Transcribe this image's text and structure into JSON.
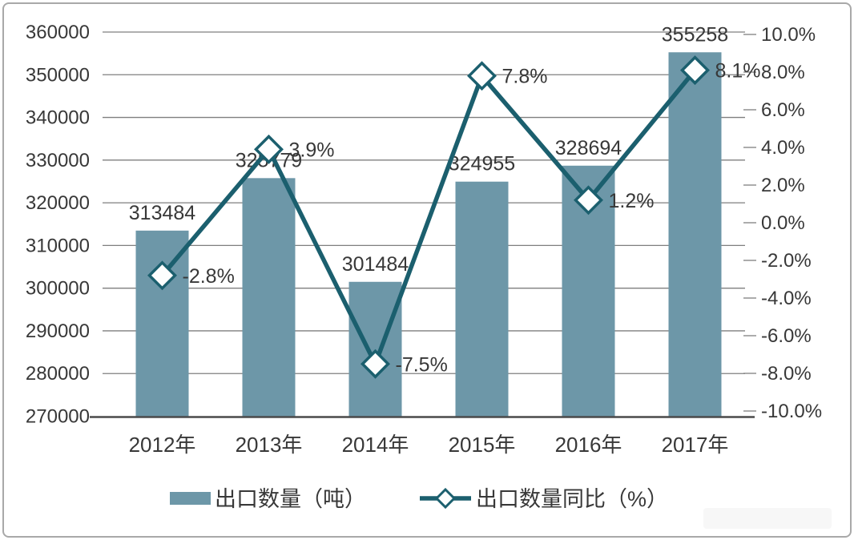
{
  "chart_data": {
    "type": "bar",
    "subtype": "combo-bar-line-dual-axis",
    "title": "",
    "categories": [
      "2012年",
      "2013年",
      "2014年",
      "2015年",
      "2016年",
      "2017年"
    ],
    "series": [
      {
        "name": "出口数量（吨）",
        "type": "bar",
        "axis": "left",
        "color": "#6d97a8",
        "values": [
          313484,
          325779,
          301484,
          324955,
          328694,
          355258
        ],
        "labels": [
          "313484",
          "325779",
          "301484",
          "324955",
          "328694",
          "355258"
        ]
      },
      {
        "name": "出口数量同比（%）",
        "type": "line",
        "axis": "right",
        "color": "#1b5f6e",
        "marker": "diamond",
        "marker_fill": "#fdfefe",
        "values": [
          -2.8,
          3.9,
          -7.5,
          7.8,
          1.2,
          8.1
        ],
        "labels": [
          "-2.8%",
          "3.9%",
          "-7.5%",
          "7.8%",
          "1.2%",
          "8.1%"
        ]
      }
    ],
    "left_axis": {
      "min": 270000,
      "max": 360000,
      "tick_labels": [
        "360000",
        "350000",
        "340000",
        "330000",
        "320000",
        "310000",
        "300000",
        "290000",
        "280000",
        "270000"
      ]
    },
    "right_axis": {
      "min": -10,
      "max": 10,
      "tick_labels": [
        "10.0%",
        "8.0%",
        "6.0%",
        "4.0%",
        "2.0%",
        "0.0%",
        "-2.0%",
        "-4.0%",
        "-6.0%",
        "-8.0%",
        "-10.0%"
      ]
    },
    "grid": true,
    "legend_position": "bottom"
  },
  "colors": {
    "bar": "#6d97a8",
    "line": "#1b5f6e",
    "marker_fill": "#fdfefe",
    "grid": "#7f7f7f",
    "axis_line": "#4a4a4a",
    "text": "#383838",
    "background": "#ffffff",
    "frame_border": "#a9a9a9"
  }
}
